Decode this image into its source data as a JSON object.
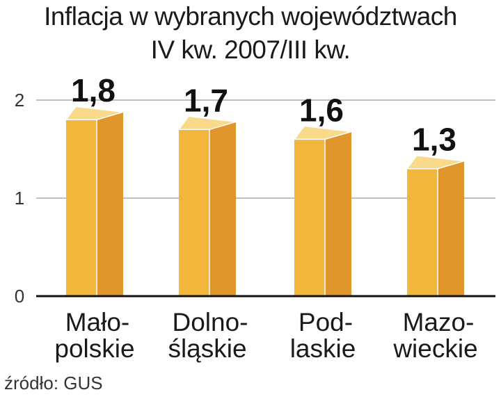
{
  "chart_data": {
    "type": "bar",
    "title": [
      "Inflacja w wybranych województwach",
      "IV kw. 2007/III kw."
    ],
    "categories": [
      [
        "Mało-",
        "polskie"
      ],
      [
        "Dolno-",
        "śląskie"
      ],
      [
        "Pod-",
        "laskie"
      ],
      [
        "Mazo-",
        "wieckie"
      ]
    ],
    "values": [
      1.8,
      1.7,
      1.6,
      1.3
    ],
    "value_labels": [
      "1,8",
      "1,7",
      "1,6",
      "1,3"
    ],
    "yticks": [
      0,
      1,
      2
    ],
    "ylim": [
      0,
      2.1
    ],
    "grid": true,
    "colors": {
      "front": "#f2b63d",
      "side": "#e0962a",
      "top": "#f9d98a",
      "edge": "#ffffff"
    }
  },
  "source": "źródło: GUS"
}
